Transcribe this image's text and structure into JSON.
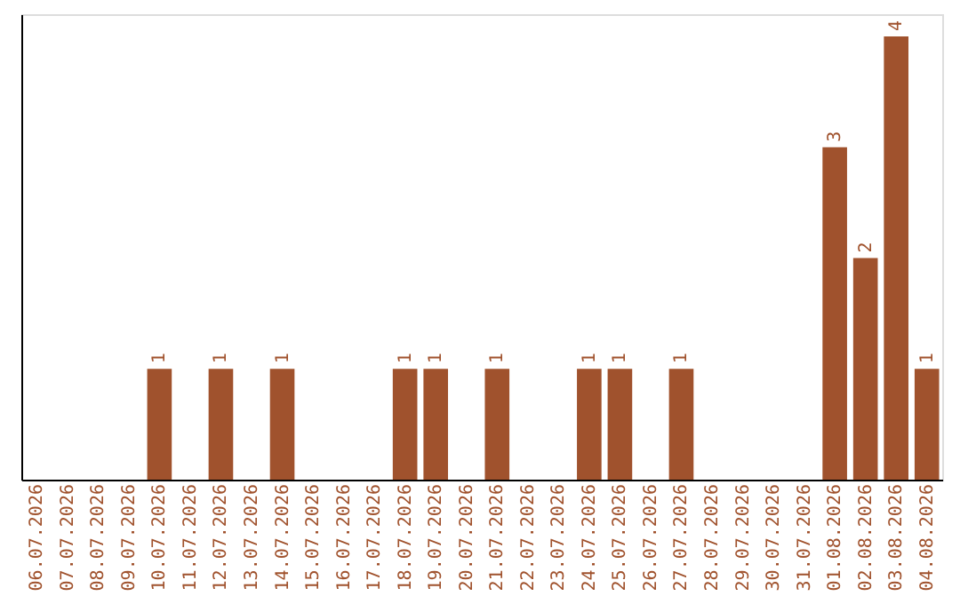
{
  "chart_data": {
    "type": "bar",
    "categories": [
      "06.07.2026",
      "07.07.2026",
      "08.07.2026",
      "09.07.2026",
      "10.07.2026",
      "11.07.2026",
      "12.07.2026",
      "13.07.2026",
      "14.07.2026",
      "15.07.2026",
      "16.07.2026",
      "17.07.2026",
      "18.07.2026",
      "19.07.2026",
      "20.07.2026",
      "21.07.2026",
      "22.07.2026",
      "23.07.2026",
      "24.07.2026",
      "25.07.2026",
      "26.07.2026",
      "27.07.2026",
      "28.07.2026",
      "29.07.2026",
      "30.07.2026",
      "31.07.2026",
      "01.08.2026",
      "02.08.2026",
      "03.08.2026",
      "04.08.2026"
    ],
    "values": [
      0,
      0,
      0,
      0,
      1,
      0,
      1,
      0,
      1,
      0,
      0,
      0,
      1,
      1,
      0,
      1,
      0,
      0,
      1,
      1,
      0,
      1,
      0,
      0,
      0,
      0,
      3,
      2,
      4,
      1
    ],
    "value_labels": [
      null,
      null,
      null,
      null,
      "1",
      null,
      "1",
      null,
      "1",
      null,
      null,
      null,
      "1",
      "1",
      null,
      "1",
      null,
      null,
      "1",
      "1",
      null,
      "1",
      null,
      null,
      null,
      null,
      "3",
      "2",
      "4",
      "1"
    ],
    "color": "#a0522d",
    "ylim": [
      0,
      4.2
    ],
    "tick_labels": "x",
    "grid": false
  }
}
